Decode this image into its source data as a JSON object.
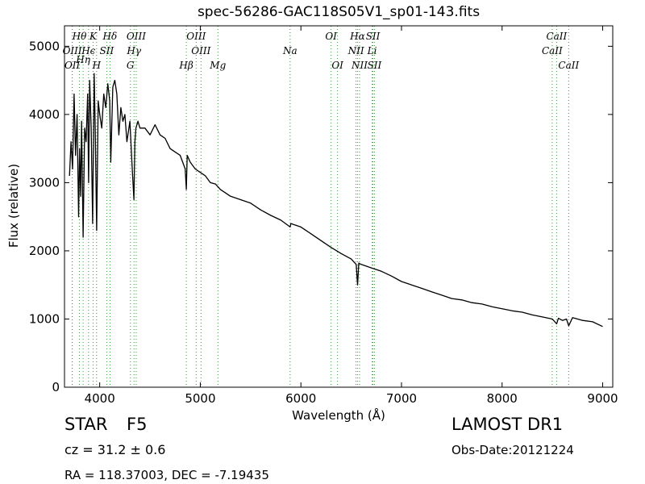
{
  "title": "spec-56286-GAC118S05V1_sp01-143.fits",
  "info": {
    "object_type": "STAR",
    "subclass": "F5",
    "cz": "cz = 31.2 ± 0.6",
    "radec": "RA = 118.37003, DEC = -7.19435",
    "survey": "LAMOST DR1",
    "obs_date": "Obs-Date:20121224"
  },
  "chart_data": {
    "type": "line",
    "xlabel": "Wavelength (Å)",
    "ylabel": "Flux (relative)",
    "xlim": [
      3650,
      9100
    ],
    "ylim": [
      0,
      5300
    ],
    "xticks": [
      4000,
      5000,
      6000,
      7000,
      8000,
      9000
    ],
    "yticks": [
      0,
      1000,
      2000,
      3000,
      4000,
      5000
    ],
    "line_color": "#000000",
    "marker_color": "#2ca02c",
    "series": [
      {
        "x": [
          3700,
          3715,
          3730,
          3745,
          3760,
          3775,
          3790,
          3800,
          3810,
          3820,
          3835,
          3850,
          3865,
          3880,
          3890,
          3900,
          3915,
          3930,
          3945,
          3955,
          3970,
          3985,
          4000,
          4020,
          4040,
          4060,
          4080,
          4100,
          4110,
          4130,
          4150,
          4170,
          4190,
          4210,
          4230,
          4250,
          4270,
          4290,
          4300,
          4320,
          4340,
          4350,
          4360,
          4380,
          4400,
          4450,
          4500,
          4550,
          4600,
          4650,
          4700,
          4750,
          4800,
          4850,
          4861,
          4870,
          4900,
          4950,
          5000,
          5050,
          5100,
          5150,
          5200,
          5300,
          5400,
          5500,
          5600,
          5700,
          5800,
          5893,
          5900,
          6000,
          6100,
          6200,
          6300,
          6400,
          6500,
          6550,
          6563,
          6575,
          6600,
          6700,
          6800,
          6900,
          7000,
          7100,
          7200,
          7300,
          7400,
          7500,
          7600,
          7700,
          7800,
          7900,
          8000,
          8100,
          8200,
          8300,
          8400,
          8500,
          8542,
          8560,
          8600,
          8640,
          8662,
          8700,
          8800,
          8900,
          9000
        ],
        "y": [
          3100,
          3600,
          3200,
          4300,
          3400,
          4000,
          2500,
          3500,
          2800,
          3900,
          2200,
          3800,
          3600,
          4300,
          3000,
          4500,
          3800,
          2400,
          4600,
          3800,
          2300,
          4200,
          4000,
          3800,
          4300,
          4100,
          4450,
          4200,
          3300,
          4400,
          4500,
          4300,
          3700,
          4100,
          3900,
          4000,
          3600,
          3800,
          3900,
          3300,
          2750,
          3600,
          3800,
          3900,
          3800,
          3800,
          3700,
          3850,
          3700,
          3650,
          3500,
          3450,
          3400,
          3200,
          2900,
          3400,
          3300,
          3200,
          3150,
          3100,
          3000,
          2980,
          2900,
          2800,
          2750,
          2700,
          2600,
          2520,
          2450,
          2350,
          2400,
          2350,
          2250,
          2150,
          2050,
          1960,
          1880,
          1800,
          1500,
          1820,
          1800,
          1750,
          1700,
          1630,
          1550,
          1500,
          1450,
          1400,
          1350,
          1300,
          1280,
          1240,
          1220,
          1180,
          1150,
          1120,
          1100,
          1060,
          1030,
          1000,
          930,
          1010,
          980,
          1000,
          900,
          1020,
          980,
          960,
          890
        ]
      }
    ],
    "spectral_lines": [
      {
        "label": "OIII",
        "x": 3727,
        "row": 1
      },
      {
        "label": "OII",
        "x": 3727,
        "row": 2
      },
      {
        "label": "Hθ",
        "x": 3798,
        "row": 0
      },
      {
        "label": "Hη",
        "x": 3835,
        "row": 1.5
      },
      {
        "label": "K",
        "x": 3934,
        "row": 0
      },
      {
        "label": "Hϵ",
        "x": 3889,
        "row": 1
      },
      {
        "label": "SII",
        "x": 4070,
        "row": 1
      },
      {
        "label": "H",
        "x": 3969,
        "row": 2
      },
      {
        "label": "Hδ",
        "x": 4102,
        "row": 0
      },
      {
        "label": "OIII",
        "x": 4363,
        "row": 0
      },
      {
        "label": "Hγ",
        "x": 4341,
        "row": 1
      },
      {
        "label": "G",
        "x": 4305,
        "row": 2
      },
      {
        "label": "OIII",
        "x": 4959,
        "row": 0
      },
      {
        "label": "OIII",
        "x": 5007,
        "row": 1
      },
      {
        "label": "Hβ",
        "x": 4861,
        "row": 2
      },
      {
        "label": "Mg",
        "x": 5175,
        "row": 2
      },
      {
        "label": "Na",
        "x": 5893,
        "row": 1
      },
      {
        "label": "OI",
        "x": 6300,
        "row": 0
      },
      {
        "label": "OI",
        "x": 6364,
        "row": 2
      },
      {
        "label": "Hα",
        "x": 6563,
        "row": 0
      },
      {
        "label": "NII",
        "x": 6548,
        "row": 1
      },
      {
        "label": "NII",
        "x": 6583,
        "row": 2
      },
      {
        "label": "SII",
        "x": 6716,
        "row": 0
      },
      {
        "label": "Li",
        "x": 6708,
        "row": 1
      },
      {
        "label": "SII",
        "x": 6731,
        "row": 2
      },
      {
        "label": "CaII",
        "x": 8542,
        "row": 0
      },
      {
        "label": "CaII",
        "x": 8498,
        "row": 1
      },
      {
        "label": "CaII",
        "x": 8662,
        "row": 2
      }
    ]
  }
}
